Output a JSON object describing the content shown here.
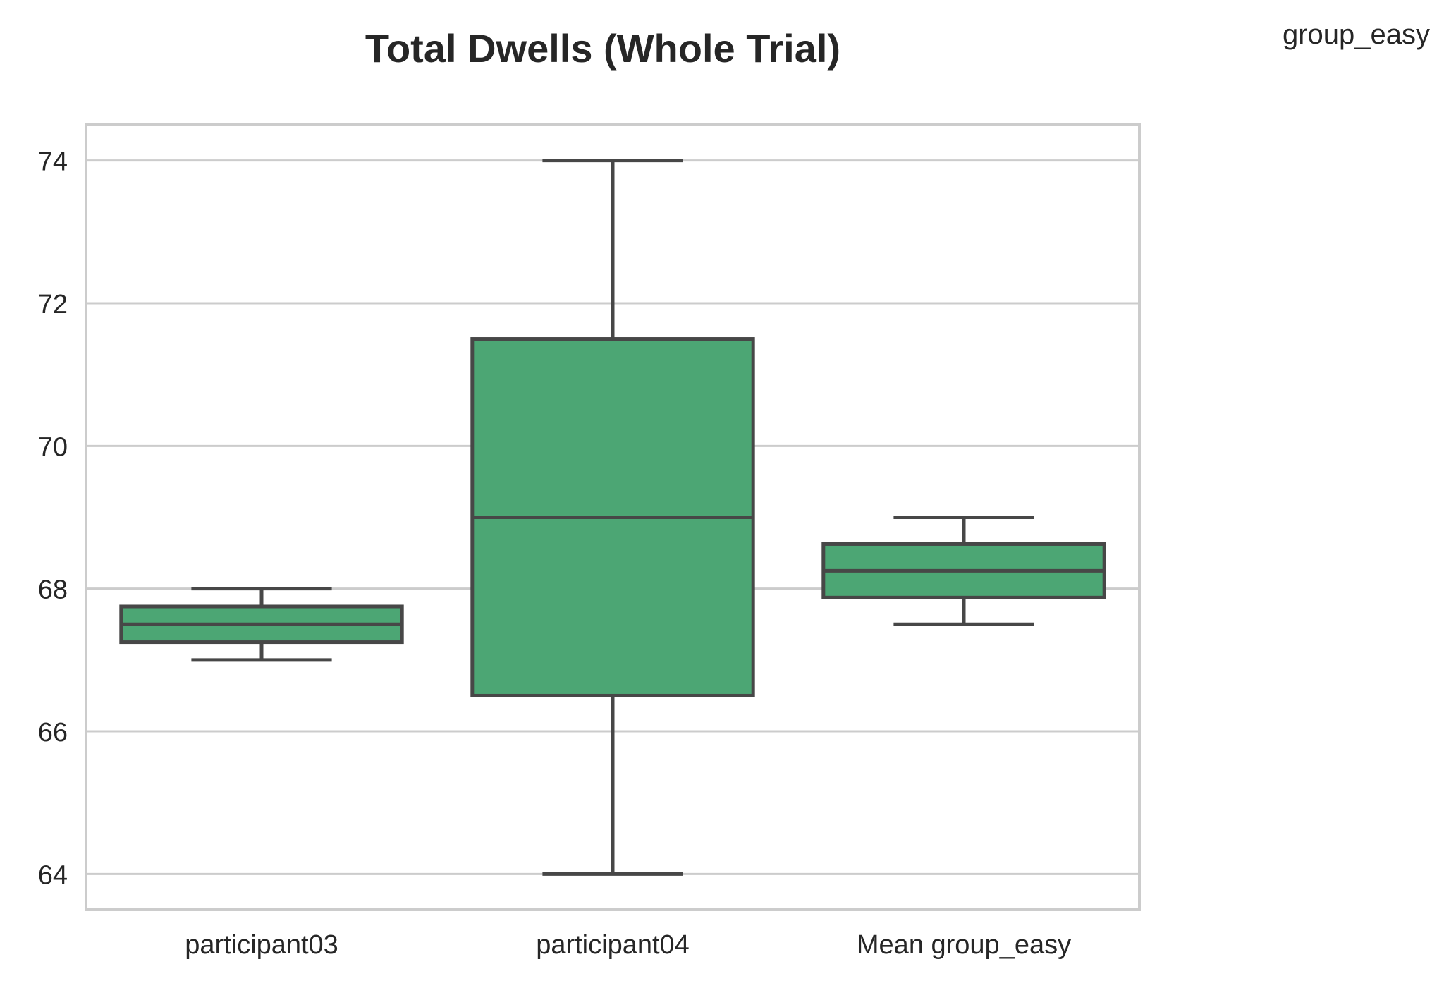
{
  "chart_data": {
    "type": "box",
    "title": "Total Dwells (Whole Trial)",
    "legend_label": "group_easy",
    "xlabel": "",
    "ylabel": "",
    "ylim": [
      63.5,
      74.5
    ],
    "yticks": [
      64,
      66,
      68,
      70,
      72,
      74
    ],
    "grid": "horizontal",
    "categories": [
      "participant03",
      "participant04",
      "Mean group_easy"
    ],
    "boxes": [
      {
        "category": "participant03",
        "whisker_low": 67.0,
        "q1": 67.25,
        "median": 67.5,
        "q3": 67.75,
        "whisker_high": 68.0
      },
      {
        "category": "participant04",
        "whisker_low": 64.0,
        "q1": 66.5,
        "median": 69.0,
        "q3": 71.5,
        "whisker_high": 74.0
      },
      {
        "category": "Mean group_easy",
        "whisker_low": 67.5,
        "q1": 67.875,
        "median": 68.25,
        "q3": 68.625,
        "whisker_high": 69.0
      }
    ],
    "colors": {
      "box_fill": "#4ca674",
      "box_edge": "#474747",
      "grid": "#cccccc",
      "spine": "#cccccc",
      "text": "#262626"
    }
  }
}
